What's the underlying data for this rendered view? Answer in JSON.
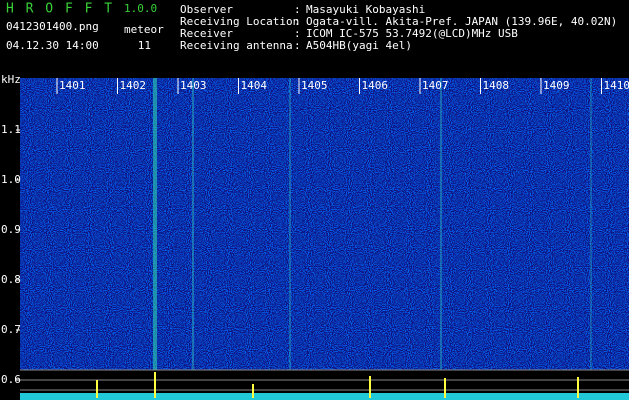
{
  "app": {
    "name": "H R O F F T",
    "version": "1.0.0"
  },
  "file": "0412301400.png",
  "datetime": "04.12.30 14:00",
  "meteor": {
    "label": "meteor",
    "count": "11"
  },
  "separator": ":",
  "info": [
    {
      "label": "Observer",
      "value": "Masayuki Kobayashi"
    },
    {
      "label": "Receiving Location",
      "value": "Ogata-vill. Akita-Pref. JAPAN (139.96E, 40.02N)"
    },
    {
      "label": "Receiver",
      "value": "ICOM IC-575 53.7492(@LCD)MHz USB"
    },
    {
      "label": "Receiving antenna",
      "value": "A504HB(yagi 4el)"
    }
  ],
  "freq_axis": {
    "unit": "kHz",
    "labels": [
      "1.1",
      "1.0",
      "0.9",
      "0.8",
      "0.7",
      "0.6"
    ]
  },
  "time_labels": [
    "1401",
    "1402",
    "1403",
    "1404",
    "1405",
    "1406",
    "1407",
    "1408",
    "1409",
    "1410"
  ]
}
